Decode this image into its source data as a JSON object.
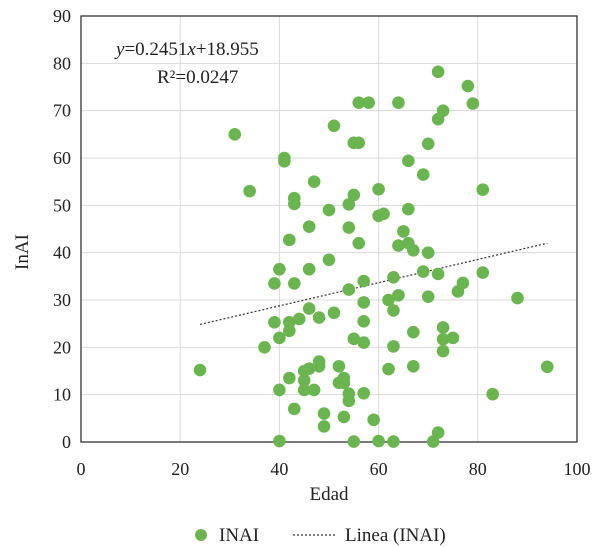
{
  "chart_data": {
    "type": "scatter",
    "title": "",
    "xlabel": "Edad",
    "ylabel": "InAI",
    "xlim": [
      0,
      100
    ],
    "ylim": [
      0,
      90
    ],
    "xticks": [
      0,
      20,
      40,
      60,
      80,
      100
    ],
    "yticks": [
      0,
      10,
      20,
      30,
      40,
      50,
      60,
      70,
      80,
      90
    ],
    "grid": "vertical and horizontal major gridlines",
    "legend_position": "bottom",
    "series": [
      {
        "name": "INAI",
        "color": "#6bb551",
        "points": [
          [
            24,
            15.2
          ],
          [
            31,
            65
          ],
          [
            34,
            53
          ],
          [
            37,
            20
          ],
          [
            39,
            25.3
          ],
          [
            39,
            33.5
          ],
          [
            40,
            22
          ],
          [
            40,
            36.5
          ],
          [
            40,
            11
          ],
          [
            40,
            0.2
          ],
          [
            41,
            60
          ],
          [
            41,
            59.3
          ],
          [
            42,
            25.3
          ],
          [
            42,
            42.7
          ],
          [
            42,
            13.5
          ],
          [
            42,
            23.5
          ],
          [
            43,
            51.5
          ],
          [
            43,
            50.3
          ],
          [
            43,
            33.5
          ],
          [
            43,
            7
          ],
          [
            44,
            26
          ],
          [
            45,
            15
          ],
          [
            45,
            13
          ],
          [
            45,
            11
          ],
          [
            46,
            45.5
          ],
          [
            46,
            36.5
          ],
          [
            46,
            28.2
          ],
          [
            46,
            15.5
          ],
          [
            47,
            55
          ],
          [
            47,
            11
          ],
          [
            48,
            26.3
          ],
          [
            48,
            17
          ],
          [
            48,
            16
          ],
          [
            49,
            6
          ],
          [
            49,
            3.3
          ],
          [
            50,
            49
          ],
          [
            50,
            38.5
          ],
          [
            51,
            66.8
          ],
          [
            51,
            27.3
          ],
          [
            52,
            16
          ],
          [
            52,
            12.5
          ],
          [
            53,
            13.5
          ],
          [
            53,
            12.5
          ],
          [
            53,
            5.3
          ],
          [
            54,
            50.2
          ],
          [
            54,
            45.3
          ],
          [
            54,
            32.2
          ],
          [
            54,
            10.2
          ],
          [
            54,
            8.7
          ],
          [
            55,
            63.2
          ],
          [
            55,
            52.2
          ],
          [
            55,
            21.8
          ],
          [
            55,
            0.1
          ],
          [
            56,
            71.7
          ],
          [
            56,
            63.2
          ],
          [
            56,
            42
          ],
          [
            57,
            34
          ],
          [
            57,
            29.5
          ],
          [
            57,
            25.5
          ],
          [
            57,
            21
          ],
          [
            57,
            10.3
          ],
          [
            58,
            71.7
          ],
          [
            59,
            4.7
          ],
          [
            60,
            53.4
          ],
          [
            60,
            47.8
          ],
          [
            60,
            0.2
          ],
          [
            61,
            48.2
          ],
          [
            62,
            30
          ],
          [
            62,
            15.4
          ],
          [
            63,
            20.2
          ],
          [
            63,
            0.1
          ],
          [
            63,
            34.8
          ],
          [
            63,
            27.8
          ],
          [
            64,
            71.7
          ],
          [
            64,
            41.5
          ],
          [
            64,
            31
          ],
          [
            65,
            44.5
          ],
          [
            66,
            59.4
          ],
          [
            66,
            49.2
          ],
          [
            66,
            42
          ],
          [
            67,
            40.5
          ],
          [
            67,
            23.2
          ],
          [
            67,
            16
          ],
          [
            69,
            56.5
          ],
          [
            69,
            36
          ],
          [
            70,
            63
          ],
          [
            70,
            40
          ],
          [
            70,
            30.7
          ],
          [
            71,
            0.1
          ],
          [
            72,
            78.2
          ],
          [
            72,
            68.2
          ],
          [
            72,
            35.5
          ],
          [
            72,
            2
          ],
          [
            73,
            70
          ],
          [
            73,
            24.2
          ],
          [
            73,
            21.7
          ],
          [
            73,
            19.2
          ],
          [
            75,
            22
          ],
          [
            76,
            31.8
          ],
          [
            77,
            33.6
          ],
          [
            78,
            75.2
          ],
          [
            79,
            71.5
          ],
          [
            81,
            53.3
          ],
          [
            81,
            35.8
          ],
          [
            83,
            10.1
          ],
          [
            88,
            30.4
          ],
          [
            94,
            15.9
          ]
        ]
      }
    ],
    "trendline": {
      "name": "Linea (INAI)",
      "type": "linear",
      "slope": 0.2451,
      "intercept": 18.955,
      "x_range": [
        24,
        94
      ],
      "equation_label": "y=0.2451x+18.955",
      "r2_label": "R²=0.0247"
    }
  },
  "legend": {
    "series_label": "INAI",
    "trend_label": "Linea (INAI)"
  }
}
